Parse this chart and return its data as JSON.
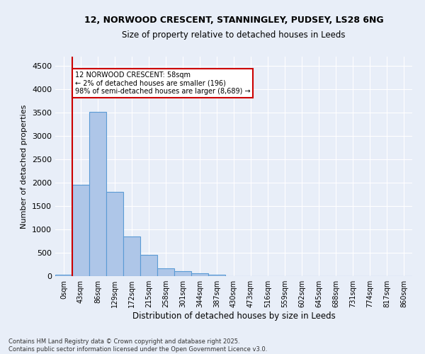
{
  "title_line1": "12, NORWOOD CRESCENT, STANNINGLEY, PUDSEY, LS28 6NG",
  "title_line2": "Size of property relative to detached houses in Leeds",
  "xlabel": "Distribution of detached houses by size in Leeds",
  "ylabel": "Number of detached properties",
  "bar_labels": [
    "0sqm",
    "43sqm",
    "86sqm",
    "129sqm",
    "172sqm",
    "215sqm",
    "258sqm",
    "301sqm",
    "344sqm",
    "387sqm",
    "430sqm",
    "473sqm",
    "516sqm",
    "559sqm",
    "602sqm",
    "645sqm",
    "688sqm",
    "731sqm",
    "774sqm",
    "817sqm",
    "860sqm"
  ],
  "bar_heights": [
    30,
    1950,
    3520,
    1800,
    850,
    450,
    170,
    100,
    60,
    30,
    5,
    0,
    0,
    0,
    0,
    0,
    0,
    0,
    0,
    0,
    0
  ],
  "bar_color": "#aec6e8",
  "bar_edge_color": "#5b9bd5",
  "vline_x": 1,
  "vline_color": "#cc0000",
  "annotation_text": "12 NORWOOD CRESCENT: 58sqm\n← 2% of detached houses are smaller (196)\n98% of semi-detached houses are larger (8,689) →",
  "annotation_box_color": "#ffffff",
  "annotation_box_edge_color": "#cc0000",
  "ylim": [
    0,
    4700
  ],
  "yticks": [
    0,
    500,
    1000,
    1500,
    2000,
    2500,
    3000,
    3500,
    4000,
    4500
  ],
  "background_color": "#e8eef8",
  "grid_color": "#ffffff",
  "footer_line1": "Contains HM Land Registry data © Crown copyright and database right 2025.",
  "footer_line2": "Contains public sector information licensed under the Open Government Licence v3.0."
}
